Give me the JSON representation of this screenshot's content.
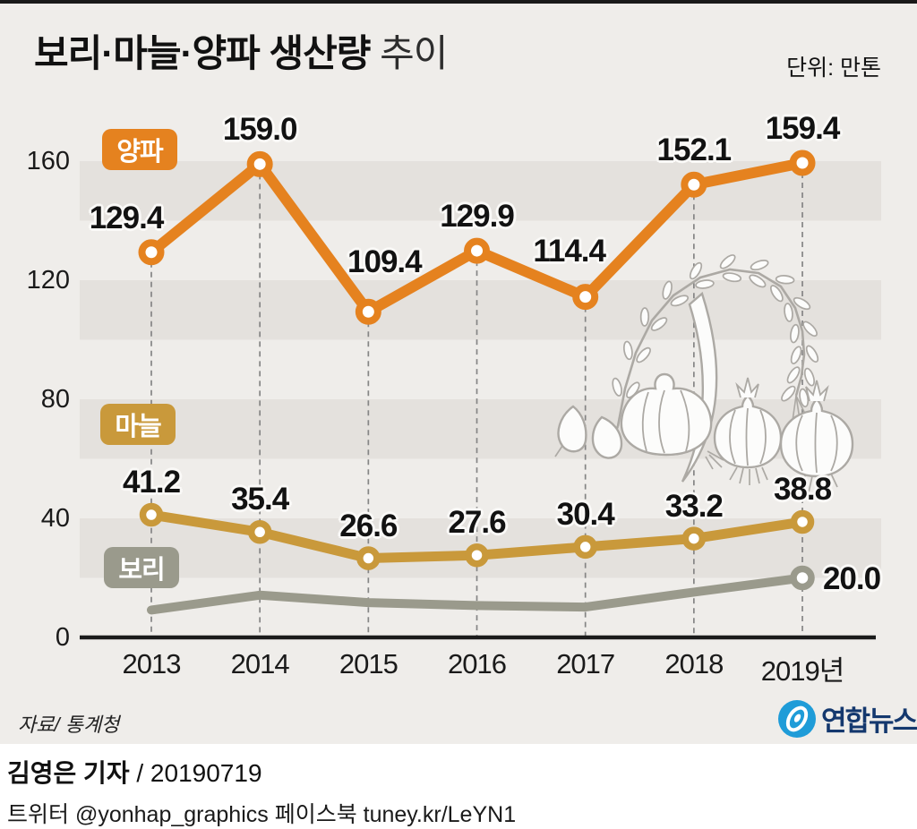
{
  "header": {
    "title_main": "보리·마늘·양파 생산량",
    "title_sub": "추이",
    "unit": "단위: 만톤"
  },
  "colors": {
    "onion": "#E5821F",
    "garlic": "#C9993B",
    "barley": "#9A9A8C",
    "band": "#E4E1DD",
    "background": "#EFEDEA",
    "dash_line": "#858585",
    "axis": "#1B1B1B",
    "watermark_stroke": "#ACA9A4",
    "yonhap_blue": "#1F9CD8",
    "yonhap_navy": "#14386E"
  },
  "chart_data": {
    "type": "line",
    "title": "보리·마늘·양파 생산량 추이",
    "unit": "만톤",
    "x": [
      2013,
      2014,
      2015,
      2016,
      2017,
      2018,
      2019
    ],
    "x_tick_labels": [
      "2013",
      "2014",
      "2015",
      "2016",
      "2017",
      "2018",
      "2019년"
    ],
    "yticks": [
      0,
      40,
      80,
      120,
      160
    ],
    "ylim": [
      0,
      175
    ],
    "bands": [
      [
        20,
        40
      ],
      [
        60,
        80
      ],
      [
        100,
        120
      ],
      [
        140,
        160
      ]
    ],
    "legend_position": "on-chart",
    "series": [
      {
        "id": "onion",
        "name": "양파",
        "color": "#E5821F",
        "values": [
          129.4,
          159.0,
          109.4,
          129.9,
          114.4,
          152.1,
          159.4
        ],
        "labels": [
          "129.4",
          "159.0",
          "109.4",
          "129.9",
          "114.4",
          "152.1",
          "159.4"
        ],
        "markers": "all"
      },
      {
        "id": "garlic",
        "name": "마늘",
        "color": "#C9993B",
        "values": [
          41.2,
          35.4,
          26.6,
          27.6,
          30.4,
          33.2,
          38.8
        ],
        "labels": [
          "41.2",
          "35.4",
          "26.6",
          "27.6",
          "30.4",
          "33.2",
          "38.8"
        ],
        "markers": "all"
      },
      {
        "id": "barley",
        "name": "보리",
        "color": "#9A9A8C",
        "values": [
          9.2,
          14.2,
          11.7,
          10.7,
          10.2,
          15.2,
          20.0
        ],
        "labels": [
          "",
          "",
          "",
          "",
          "",
          "",
          "20.0"
        ],
        "markers": "last",
        "note": "only final value labeled in graphic; earlier points estimated from line"
      }
    ]
  },
  "footer": {
    "source": "자료/ 통계청",
    "logo_text": "연합뉴스",
    "byline_name": "김영은 기자",
    "byline_date": " / 20190719",
    "sns": "트위터 @yonhap_graphics  페이스북 tuney.kr/LeYN1"
  }
}
